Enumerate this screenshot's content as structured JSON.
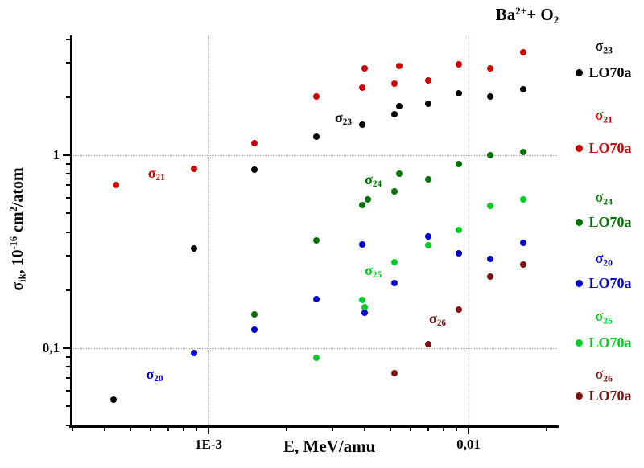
{
  "title": {
    "element": "Ba",
    "charge": "2+",
    "plus": "+ O",
    "target_index": "2"
  },
  "y_axis": {
    "sigma": "σ",
    "sigma_sub": "ik",
    "mid": ", 10",
    "exp": "-16",
    "unit": " cm",
    "unit_exp": "2",
    "unit_rest": "/atom",
    "ticks": [
      {
        "value": 1,
        "label": "1"
      },
      {
        "value": 0.1,
        "label": "0,1"
      }
    ]
  },
  "x_axis": {
    "title": "E, MeV/amu",
    "ticks": [
      {
        "value": 0.001,
        "label": "1E-3"
      },
      {
        "value": 0.01,
        "label": "0,01"
      }
    ]
  },
  "legend": {
    "source_label": "LO70a",
    "entries": [
      {
        "key": "s23",
        "sigma": "σ",
        "sub": "23",
        "color": "#000000"
      },
      {
        "key": "s21",
        "sigma": "σ",
        "sub": "21",
        "color": "#cc0000"
      },
      {
        "key": "s24",
        "sigma": "σ",
        "sub": "24",
        "color": "#007200"
      },
      {
        "key": "s20",
        "sigma": "σ",
        "sub": "20",
        "color": "#0000cc"
      },
      {
        "key": "s25",
        "sigma": "σ",
        "sub": "25",
        "color": "#00cc22"
      },
      {
        "key": "s26",
        "sigma": "σ",
        "sub": "26",
        "color": "#7a1010"
      }
    ]
  },
  "chart_data": {
    "type": "scatter",
    "title": "Ba2+ + O2",
    "xlabel": "E, MeV/amu",
    "ylabel": "σik, 10-16 cm2/atom",
    "x_scale": "log",
    "y_scale": "log",
    "xlim": [
      0.0003,
      0.022
    ],
    "ylim": [
      0.04,
      4.2
    ],
    "grid": true,
    "grid_x_values": [
      0.001,
      0.01
    ],
    "grid_y_values": [
      0.1,
      1
    ],
    "legend_position": "right",
    "series": [
      {
        "key": "s23",
        "name": "σ23",
        "source": "LO70a",
        "color": "#000000",
        "points": [
          [
            0.00043,
            0.054
          ],
          [
            0.00088,
            0.33
          ],
          [
            0.0015,
            0.84
          ],
          [
            0.0026,
            1.25
          ],
          [
            0.0039,
            1.44
          ],
          [
            0.0052,
            1.63
          ],
          [
            0.0054,
            1.8
          ],
          [
            0.007,
            1.85
          ],
          [
            0.0092,
            2.1
          ],
          [
            0.0121,
            2.01
          ],
          [
            0.0162,
            2.2
          ]
        ]
      },
      {
        "key": "s21",
        "name": "σ21",
        "source": "LO70a",
        "color": "#cc0000",
        "points": [
          [
            0.00044,
            0.7
          ],
          [
            0.00088,
            0.85
          ],
          [
            0.0015,
            1.15
          ],
          [
            0.0026,
            2.01
          ],
          [
            0.0039,
            2.24
          ],
          [
            0.004,
            2.82
          ],
          [
            0.0052,
            2.36
          ],
          [
            0.0054,
            2.9
          ],
          [
            0.007,
            2.44
          ],
          [
            0.0092,
            2.95
          ],
          [
            0.0121,
            2.82
          ],
          [
            0.0162,
            3.41
          ]
        ]
      },
      {
        "key": "s24",
        "name": "σ24",
        "source": "LO70a",
        "color": "#007200",
        "points": [
          [
            0.0015,
            0.15
          ],
          [
            0.0026,
            0.36
          ],
          [
            0.0039,
            0.55
          ],
          [
            0.0041,
            0.59
          ],
          [
            0.0052,
            0.65
          ],
          [
            0.0054,
            0.8
          ],
          [
            0.007,
            0.75
          ],
          [
            0.0092,
            0.9
          ],
          [
            0.0121,
            1.0
          ],
          [
            0.0162,
            1.04
          ]
        ]
      },
      {
        "key": "s20",
        "name": "σ20",
        "source": "LO70a",
        "color": "#0000cc",
        "points": [
          [
            0.00088,
            0.094
          ],
          [
            0.0015,
            0.125
          ],
          [
            0.0026,
            0.179
          ],
          [
            0.0039,
            0.345
          ],
          [
            0.004,
            0.152
          ],
          [
            0.0052,
            0.218
          ],
          [
            0.007,
            0.38
          ],
          [
            0.0092,
            0.31
          ],
          [
            0.0121,
            0.29
          ],
          [
            0.0162,
            0.35
          ]
        ]
      },
      {
        "key": "s25",
        "name": "σ25",
        "source": "LO70a",
        "color": "#00cc22",
        "points": [
          [
            0.0026,
            0.089
          ],
          [
            0.0039,
            0.178
          ],
          [
            0.004,
            0.163
          ],
          [
            0.0052,
            0.28
          ],
          [
            0.007,
            0.34
          ],
          [
            0.0092,
            0.41
          ],
          [
            0.0121,
            0.545
          ],
          [
            0.0162,
            0.59
          ]
        ]
      },
      {
        "key": "s26",
        "name": "σ26",
        "source": "LO70a",
        "color": "#7a1010",
        "points": [
          [
            0.0052,
            0.074
          ],
          [
            0.007,
            0.105
          ],
          [
            0.0092,
            0.158
          ],
          [
            0.0121,
            0.235
          ],
          [
            0.0162,
            0.27
          ]
        ]
      }
    ],
    "annotations": [
      {
        "key": "s21",
        "text": "σ",
        "sub": "21",
        "x": 0.00063,
        "y": 0.8,
        "color": "#cc0000"
      },
      {
        "key": "s23",
        "text": "σ",
        "sub": "23",
        "x": 0.0033,
        "y": 1.55,
        "color": "#000000"
      },
      {
        "key": "s24",
        "text": "σ",
        "sub": "24",
        "x": 0.0043,
        "y": 0.74,
        "color": "#007200"
      },
      {
        "key": "s25",
        "text": "σ",
        "sub": "25",
        "x": 0.0043,
        "y": 0.25,
        "color": "#00cc22"
      },
      {
        "key": "s20",
        "text": "σ",
        "sub": "20",
        "x": 0.00062,
        "y": 0.073,
        "color": "#0000cc"
      },
      {
        "key": "s26",
        "text": "σ",
        "sub": "26",
        "x": 0.0076,
        "y": 0.141,
        "color": "#7a1010"
      }
    ]
  }
}
